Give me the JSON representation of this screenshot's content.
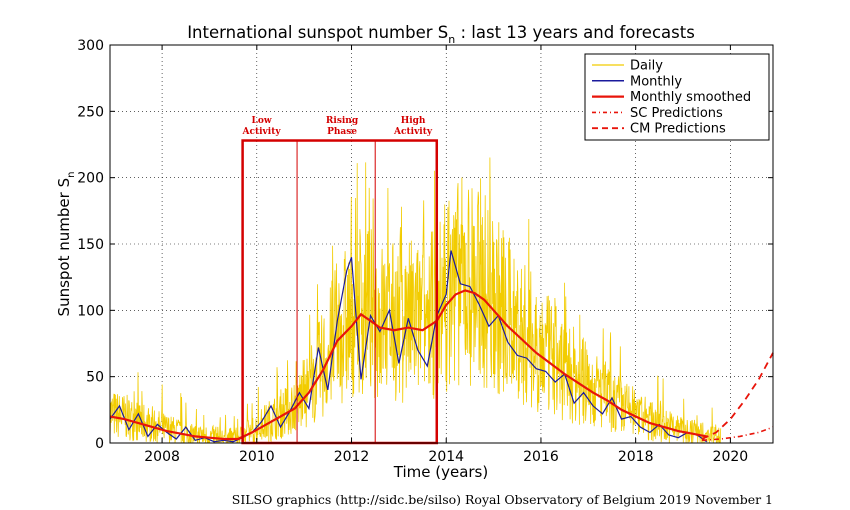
{
  "chart_data": {
    "type": "line",
    "title_main": "International sunspot number S",
    "title_sub": "n",
    "title_rest": ": last 13 years and forecasts",
    "xlabel": "Time (years)",
    "ylabel_main": "Sunspot number S",
    "ylabel_sub": "n",
    "xlim": [
      2006.9,
      2020.9
    ],
    "ylim": [
      0,
      300
    ],
    "xticks": [
      2008,
      2010,
      2012,
      2014,
      2016,
      2018,
      2020
    ],
    "yticks": [
      0,
      50,
      100,
      150,
      200,
      250,
      300
    ],
    "grid": true,
    "legend_position": "top-right",
    "legend": [
      "Daily",
      "Monthly",
      "Monthly smoothed",
      "SC Predictions",
      "CM Predictions"
    ],
    "colors": {
      "daily": "#f2cc00",
      "monthly": "#1a1a9c",
      "smoothed": "#e8140a",
      "annotation": "#d40000"
    },
    "annotations": [
      {
        "lines": [
          "Low",
          "Activity"
        ],
        "x": 2010.1
      },
      {
        "lines": [
          "Rising",
          "Phase"
        ],
        "x": 2011.8
      },
      {
        "lines": [
          "High",
          "Activity"
        ],
        "x": 2013.3
      }
    ],
    "phase_box": {
      "x_start": 2009.7,
      "x_end": 2013.8,
      "y_top": 228,
      "dividers": [
        2010.85,
        2012.5
      ]
    },
    "series": [
      {
        "name": "Monthly smoothed",
        "style": "solid-red-thick",
        "x": [
          2006.9,
          2007.2,
          2007.5,
          2007.8,
          2008.1,
          2008.4,
          2008.7,
          2009.0,
          2009.3,
          2009.6,
          2009.9,
          2010.2,
          2010.5,
          2010.8,
          2011.1,
          2011.4,
          2011.7,
          2012.0,
          2012.2,
          2012.4,
          2012.6,
          2012.9,
          2013.2,
          2013.5,
          2013.8,
          2014.0,
          2014.2,
          2014.4,
          2014.6,
          2014.8,
          2015.0,
          2015.3,
          2015.6,
          2015.9,
          2016.2,
          2016.5,
          2016.8,
          2017.1,
          2017.4,
          2017.7,
          2018.0,
          2018.3,
          2018.6,
          2018.9,
          2019.2,
          2019.5
        ],
        "y": [
          20,
          18,
          15,
          12,
          9,
          7,
          5,
          4,
          3,
          3,
          8,
          14,
          20,
          26,
          38,
          55,
          77,
          88,
          97,
          92,
          87,
          85,
          87,
          85,
          92,
          104,
          112,
          115,
          113,
          108,
          100,
          88,
          78,
          68,
          60,
          52,
          45,
          38,
          32,
          25,
          20,
          15,
          12,
          9,
          7,
          5
        ]
      },
      {
        "name": "Monthly",
        "style": "solid-blue",
        "x": [
          2006.9,
          2007.1,
          2007.3,
          2007.5,
          2007.7,
          2007.9,
          2008.1,
          2008.3,
          2008.5,
          2008.7,
          2008.9,
          2009.1,
          2009.3,
          2009.5,
          2009.7,
          2009.9,
          2010.1,
          2010.3,
          2010.5,
          2010.7,
          2010.9,
          2011.1,
          2011.3,
          2011.5,
          2011.7,
          2011.9,
          2012.0,
          2012.2,
          2012.4,
          2012.6,
          2012.8,
          2013.0,
          2013.2,
          2013.4,
          2013.6,
          2013.8,
          2014.0,
          2014.1,
          2014.3,
          2014.5,
          2014.7,
          2014.9,
          2015.1,
          2015.3,
          2015.5,
          2015.7,
          2015.9,
          2016.1,
          2016.3,
          2016.5,
          2016.7,
          2016.9,
          2017.1,
          2017.3,
          2017.5,
          2017.7,
          2017.9,
          2018.1,
          2018.3,
          2018.5,
          2018.7,
          2018.9,
          2019.1,
          2019.3,
          2019.5
        ],
        "y": [
          18,
          28,
          10,
          22,
          5,
          14,
          8,
          3,
          12,
          2,
          4,
          1,
          2,
          1,
          4,
          8,
          16,
          28,
          12,
          24,
          38,
          26,
          72,
          40,
          92,
          130,
          140,
          48,
          96,
          84,
          100,
          60,
          94,
          70,
          58,
          96,
          112,
          145,
          120,
          118,
          104,
          88,
          96,
          76,
          66,
          64,
          56,
          54,
          46,
          52,
          30,
          38,
          28,
          22,
          34,
          18,
          20,
          12,
          8,
          14,
          6,
          4,
          8,
          6,
          1
        ]
      },
      {
        "name": "Daily",
        "style": "solid-yellow-noisy",
        "envelope_note": "daily values range 0-220"
      }
    ],
    "predictions": [
      {
        "name": "SC Predictions",
        "style": "dash-dot",
        "x": [
          2019.4,
          2019.8,
          2020.2,
          2020.6,
          2020.9
        ],
        "y": [
          2,
          3,
          5,
          8,
          12
        ]
      },
      {
        "name": "CM Predictions",
        "style": "dashed",
        "x": [
          2019.4,
          2019.7,
          2020.0,
          2020.3,
          2020.6,
          2020.9
        ],
        "y": [
          3,
          8,
          18,
          32,
          48,
          68
        ]
      }
    ]
  },
  "footer": {
    "credit": "SILSO graphics (http://sidc.be/silso)  Royal Observatory of Belgium  2019 November 1"
  }
}
